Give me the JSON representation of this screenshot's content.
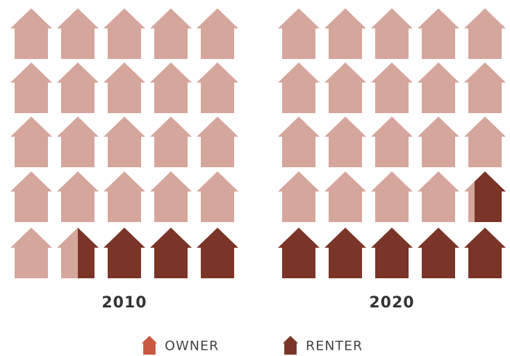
{
  "chart_data": {
    "type": "pictogram",
    "categories": [
      "2010",
      "2020"
    ],
    "units": 25,
    "series": [
      {
        "name": "OWNER",
        "color": "#d5a69c",
        "legend_color": "#c8583f",
        "values": [
          86,
          77
        ]
      },
      {
        "name": "RENTER",
        "color": "#7b3528",
        "legend_color": "#7b3528",
        "values": [
          14,
          23
        ]
      }
    ]
  }
}
